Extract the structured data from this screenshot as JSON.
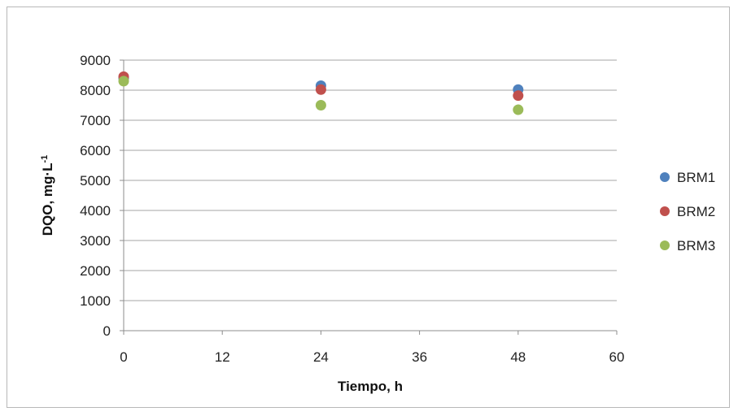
{
  "chart_data": {
    "type": "scatter",
    "title": "",
    "xlabel": "Tiempo, h",
    "ylabel_main": "DQO, mg·L",
    "ylabel_sup": "-1",
    "xlim": [
      0,
      60
    ],
    "ylim": [
      0,
      9000
    ],
    "xticks": [
      0,
      12,
      24,
      36,
      48,
      60
    ],
    "yticks": [
      0,
      1000,
      2000,
      3000,
      4000,
      5000,
      6000,
      7000,
      8000,
      9000
    ],
    "grid": true,
    "legend_position": "right",
    "series": [
      {
        "name": "BRM1",
        "color": "#4f81bd",
        "x": [
          0,
          24,
          48
        ],
        "y": [
          8400,
          8150,
          8020
        ]
      },
      {
        "name": "BRM2",
        "color": "#c0504d",
        "x": [
          0,
          24,
          48
        ],
        "y": [
          8450,
          8020,
          7820
        ]
      },
      {
        "name": "BRM3",
        "color": "#9bbb59",
        "x": [
          0,
          24,
          48
        ],
        "y": [
          8300,
          7500,
          7350
        ]
      }
    ]
  }
}
